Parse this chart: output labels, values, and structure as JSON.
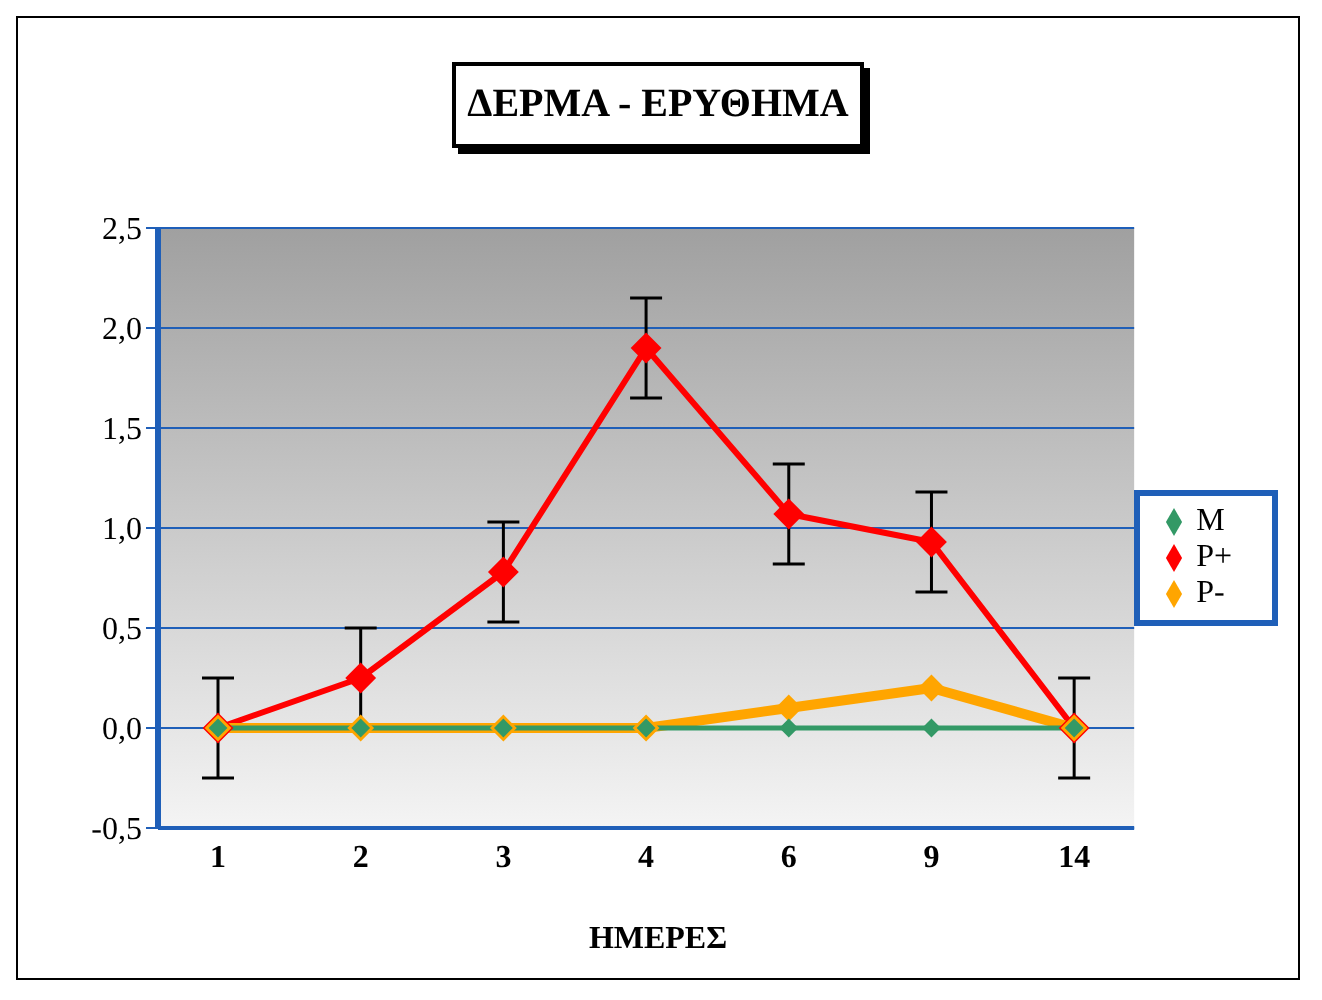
{
  "chart_data": {
    "type": "line",
    "title": "ΔΕΡΜΑ - ΕΡΥΘΗΜΑ",
    "xlabel": "ΗΜΕΡΕΣ",
    "categories": [
      "1",
      "2",
      "3",
      "4",
      "6",
      "9",
      "14"
    ],
    "series": [
      {
        "name": "P+",
        "color": "#ff0000",
        "values": [
          0,
          0.25,
          0.78,
          1.9,
          1.07,
          0.93,
          0
        ],
        "errors": [
          0.25,
          0.25,
          0.25,
          0.25,
          0.25,
          0.25,
          0.25
        ]
      },
      {
        "name": "P-",
        "color": "#ffa500",
        "values": [
          0,
          0,
          0,
          0,
          0.1,
          0.2,
          0
        ]
      },
      {
        "name": "M",
        "color": "#339966",
        "values": [
          0,
          0,
          0,
          0,
          0,
          0,
          0
        ]
      }
    ],
    "ylim": [
      -0.5,
      2.5
    ],
    "yticks": [
      {
        "value": -0.5,
        "label": "-0,5"
      },
      {
        "value": 0,
        "label": "0,0"
      },
      {
        "value": 0.5,
        "label": "0,5"
      },
      {
        "value": 1,
        "label": "1,0"
      },
      {
        "value": 1.5,
        "label": "1,5"
      },
      {
        "value": 2,
        "label": "2,0"
      },
      {
        "value": 2.5,
        "label": "2,5"
      }
    ],
    "grid": "y",
    "legend": "right",
    "marker": "diamond",
    "line_style": "solid"
  }
}
